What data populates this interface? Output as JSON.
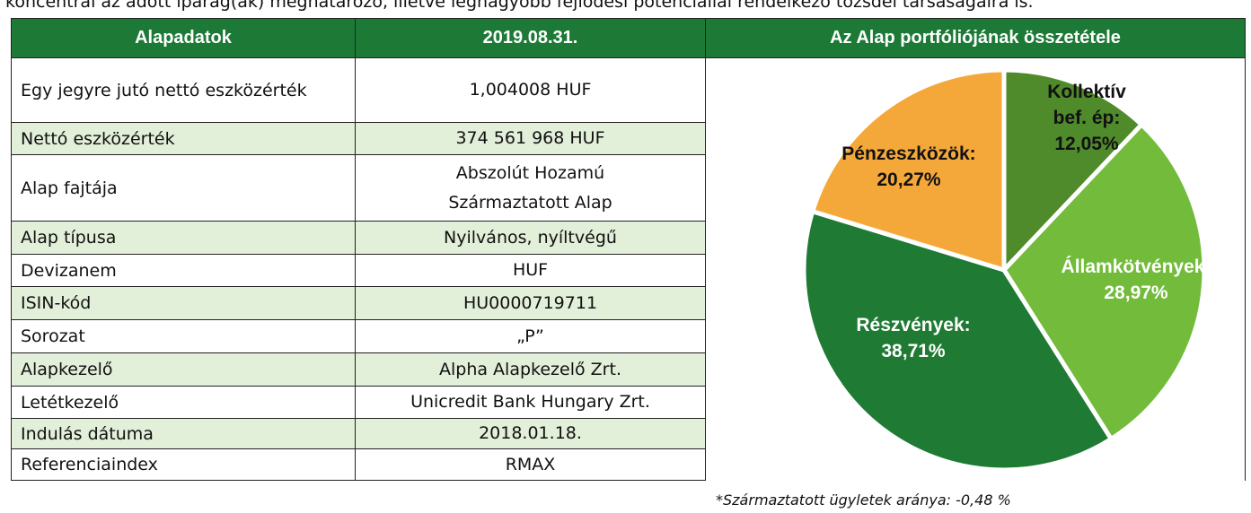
{
  "intro_text": "koncentrál az adott iparág(ak) meghatározó, illetve legnagyobb fejlődési potenciállal rendelkező tőzsdei társaságaira is.",
  "table": {
    "headers": [
      "Alapadatok",
      "2019.08.31.",
      "Az Alap portfóliójának összetétele"
    ],
    "rows": [
      [
        "Egy jegyre jutó nettó eszközérték",
        "1,004008 HUF"
      ],
      [
        "Nettó eszközérték",
        "374 561 968 HUF"
      ],
      [
        "Alap fajtája",
        "Abszolút Hozamú Származtatott Alap"
      ],
      [
        "Alap típusa",
        "Nyilvános, nyíltvégű"
      ],
      [
        "Devizanem",
        "HUF"
      ],
      [
        "ISIN-kód",
        "HU0000719711"
      ],
      [
        "Sorozat",
        "„P”"
      ],
      [
        "Alapkezelő",
        "Alpha Alapkezelő Zrt."
      ],
      [
        "Letétkezelő",
        "Unicredit Bank Hungary Zrt."
      ],
      [
        "Indulás dátuma",
        "2018.01.18."
      ],
      [
        "Referenciaindex",
        "RMAX"
      ]
    ]
  },
  "chart_data": {
    "type": "pie",
    "categories": [
      "Kollektív bef. ép:",
      "Államkötvények:",
      "Részvények:",
      "Pénzeszközök:"
    ],
    "values": [
      12.05,
      28.97,
      38.71,
      20.27
    ],
    "value_labels": [
      "12,05%",
      "28,97%",
      "38,71%",
      "20,27%"
    ],
    "colors": [
      "#4f8a2b",
      "#72bb3b",
      "#1f7a34",
      "#f5a83a"
    ]
  },
  "footnote": "*Származtatott ügyletek aránya: -0,48 %"
}
